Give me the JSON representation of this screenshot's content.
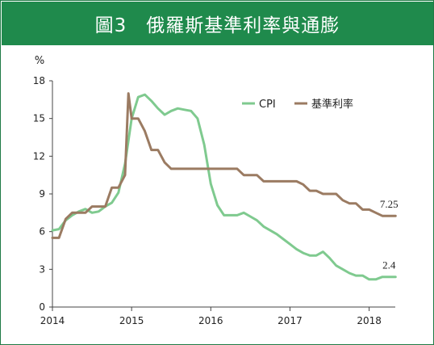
{
  "title": "圖3　俄羅斯基準利率與通膨",
  "colors": {
    "title_bg": "#1f8a4c",
    "cpi": "#7fca8f",
    "rate": "#9b7b62",
    "axis": "#444444"
  },
  "chart_data": {
    "type": "line",
    "title": "圖3　俄羅斯基準利率與通膨",
    "ylabel": "%",
    "xlabel": "",
    "ylim": [
      0,
      18
    ],
    "yticks": [
      "0",
      "3",
      "6",
      "9",
      "12",
      "15",
      "18"
    ],
    "xlim": [
      2014,
      2018.33
    ],
    "xticks": [
      "2014",
      "2015",
      "2016",
      "2017",
      "2018"
    ],
    "grid": false,
    "legend_position": "top-right",
    "series": [
      {
        "name": "CPI",
        "color": "#7fca8f",
        "x": [
          2014.0,
          2014.083,
          2014.167,
          2014.25,
          2014.333,
          2014.417,
          2014.5,
          2014.583,
          2014.667,
          2014.75,
          2014.833,
          2014.917,
          2015.0,
          2015.083,
          2015.167,
          2015.25,
          2015.333,
          2015.417,
          2015.5,
          2015.583,
          2015.667,
          2015.75,
          2015.833,
          2015.917,
          2016.0,
          2016.083,
          2016.167,
          2016.25,
          2016.333,
          2016.417,
          2016.5,
          2016.583,
          2016.667,
          2016.75,
          2016.833,
          2016.917,
          2017.0,
          2017.083,
          2017.167,
          2017.25,
          2017.333,
          2017.417,
          2017.5,
          2017.583,
          2017.667,
          2017.75,
          2017.833,
          2017.917,
          2018.0,
          2018.083,
          2018.167,
          2018.25,
          2018.333
        ],
        "values": [
          6.1,
          6.2,
          6.9,
          7.3,
          7.6,
          7.8,
          7.5,
          7.6,
          8.0,
          8.3,
          9.1,
          11.4,
          15.0,
          16.7,
          16.9,
          16.4,
          15.8,
          15.3,
          15.6,
          15.8,
          15.7,
          15.6,
          15.0,
          12.9,
          9.8,
          8.1,
          7.3,
          7.3,
          7.3,
          7.5,
          7.2,
          6.9,
          6.4,
          6.1,
          5.8,
          5.4,
          5.0,
          4.6,
          4.3,
          4.1,
          4.1,
          4.4,
          3.9,
          3.3,
          3.0,
          2.7,
          2.5,
          2.5,
          2.2,
          2.2,
          2.4,
          2.4,
          2.4
        ],
        "end_label": "2.4"
      },
      {
        "name": "基準利率",
        "color": "#9b7b62",
        "x": [
          2014.0,
          2014.083,
          2014.167,
          2014.25,
          2014.333,
          2014.417,
          2014.5,
          2014.583,
          2014.667,
          2014.75,
          2014.833,
          2014.917,
          2014.96,
          2015.0,
          2015.083,
          2015.167,
          2015.25,
          2015.333,
          2015.417,
          2015.5,
          2015.583,
          2015.667,
          2015.75,
          2015.833,
          2015.917,
          2016.0,
          2016.083,
          2016.167,
          2016.25,
          2016.333,
          2016.417,
          2016.5,
          2016.583,
          2016.667,
          2016.75,
          2016.833,
          2016.917,
          2017.0,
          2017.083,
          2017.167,
          2017.25,
          2017.333,
          2017.417,
          2017.5,
          2017.583,
          2017.667,
          2017.75,
          2017.833,
          2017.917,
          2018.0,
          2018.083,
          2018.167,
          2018.25,
          2018.333
        ],
        "values": [
          5.5,
          5.5,
          7.0,
          7.5,
          7.5,
          7.5,
          8.0,
          8.0,
          8.0,
          9.5,
          9.5,
          10.5,
          17.0,
          15.0,
          15.0,
          14.0,
          12.5,
          12.5,
          11.5,
          11.0,
          11.0,
          11.0,
          11.0,
          11.0,
          11.0,
          11.0,
          11.0,
          11.0,
          11.0,
          11.0,
          10.5,
          10.5,
          10.5,
          10.0,
          10.0,
          10.0,
          10.0,
          10.0,
          10.0,
          9.75,
          9.25,
          9.25,
          9.0,
          9.0,
          9.0,
          8.5,
          8.25,
          8.25,
          7.75,
          7.75,
          7.5,
          7.25,
          7.25,
          7.25
        ],
        "end_label": "7.25"
      }
    ]
  }
}
